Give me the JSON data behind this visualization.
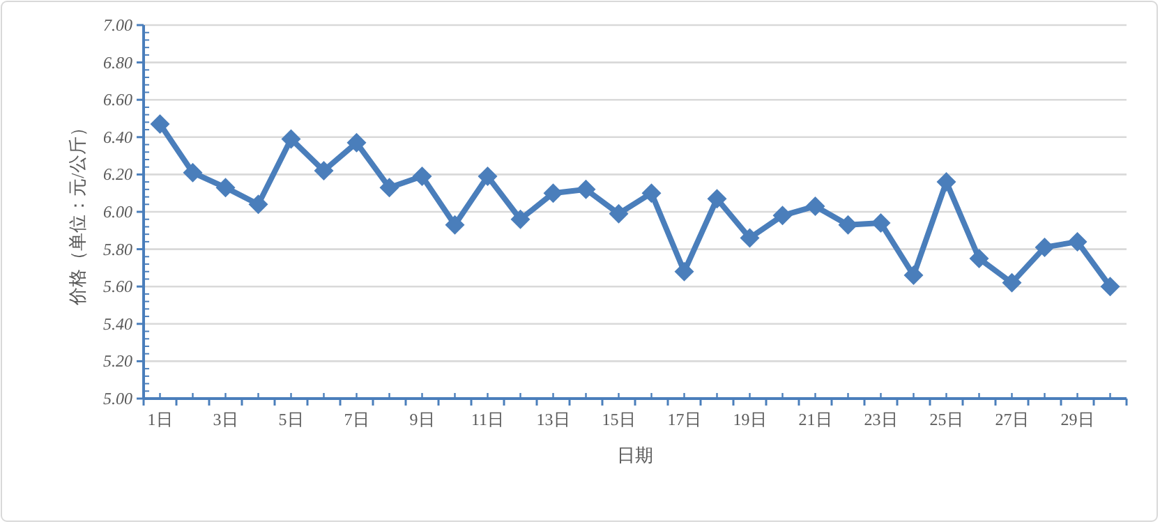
{
  "chart_data": {
    "type": "line",
    "xlabel": "日期",
    "ylabel": "价格（单位：元/公斤）",
    "categories": [
      "1日",
      null,
      "3日",
      null,
      "5日",
      null,
      "7日",
      null,
      "9日",
      null,
      "11日",
      null,
      "13日",
      null,
      "15日",
      null,
      "17日",
      null,
      "19日",
      null,
      "21日",
      null,
      "23日",
      null,
      "25日",
      null,
      "27日",
      null,
      "29日",
      null
    ],
    "series": [
      {
        "color": "#4a7ebb",
        "values": [
          6.47,
          6.21,
          6.13,
          6.04,
          6.39,
          6.22,
          6.37,
          6.13,
          6.19,
          5.93,
          6.19,
          5.96,
          6.1,
          6.12,
          5.99,
          6.1,
          5.68,
          6.07,
          5.86,
          5.98,
          6.03,
          5.93,
          5.94,
          5.66,
          6.16,
          5.75,
          5.62,
          5.81,
          5.84,
          5.6
        ]
      }
    ],
    "ylim": [
      5.0,
      7.0
    ],
    "yticks": [
      {
        "value": 5.0,
        "label": "5.00"
      },
      {
        "value": 5.2,
        "label": "5.20"
      },
      {
        "value": 5.4,
        "label": "5.40"
      },
      {
        "value": 5.6,
        "label": "5.60"
      },
      {
        "value": 5.8,
        "label": "5.80"
      },
      {
        "value": 6.0,
        "label": "6.00"
      },
      {
        "value": 6.2,
        "label": "6.20"
      },
      {
        "value": 6.4,
        "label": "6.40"
      },
      {
        "value": 6.6,
        "label": "6.60"
      },
      {
        "value": 6.8,
        "label": "6.80"
      },
      {
        "value": 7.0,
        "label": "7.00"
      }
    ],
    "grid": "y",
    "marker": "diamond",
    "line_style": "solid"
  }
}
